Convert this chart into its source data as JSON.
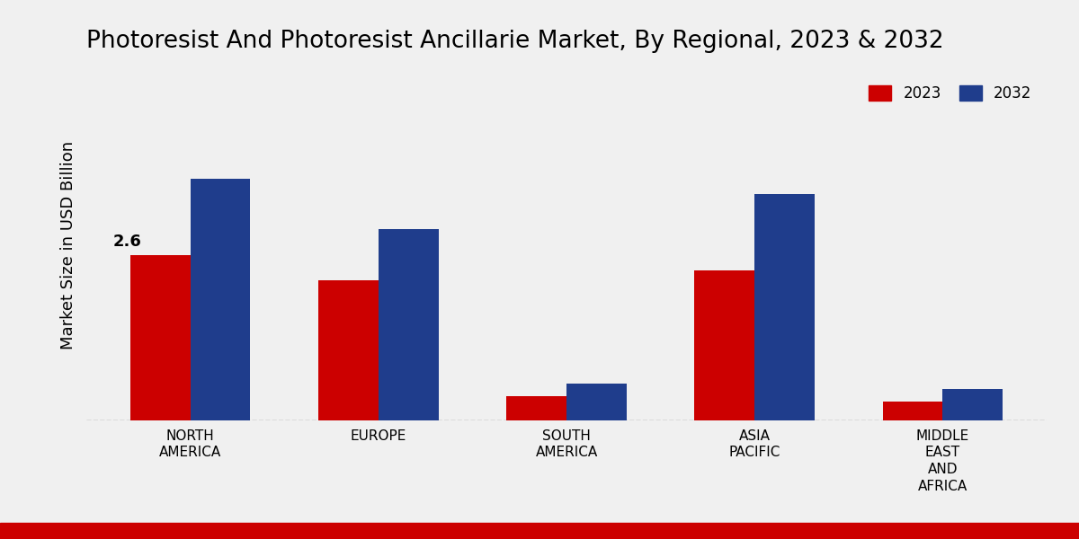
{
  "title": "Photoresist And Photoresist Ancillarie Market, By Regional, 2023 & 2032",
  "ylabel": "Market Size in USD Billion",
  "categories": [
    "NORTH\nAMERICA",
    "EUROPE",
    "SOUTH\nAMERICA",
    "ASIA\nPACIFIC",
    "MIDDLE\nEAST\nAND\nAFRICA"
  ],
  "values_2023": [
    2.6,
    2.2,
    0.38,
    2.35,
    0.3
  ],
  "values_2032": [
    3.8,
    3.0,
    0.58,
    3.55,
    0.5
  ],
  "color_2023": "#cc0000",
  "color_2032": "#1f3d8c",
  "annotation_label": "2.6",
  "annotation_bar_index": 0,
  "background_color": "#f0f0f0",
  "bar_width": 0.32,
  "ylim": [
    0,
    5.5
  ],
  "dashed_line_y": 0.0,
  "legend_labels": [
    "2023",
    "2032"
  ],
  "title_fontsize": 19,
  "ylabel_fontsize": 13,
  "tick_fontsize": 11
}
